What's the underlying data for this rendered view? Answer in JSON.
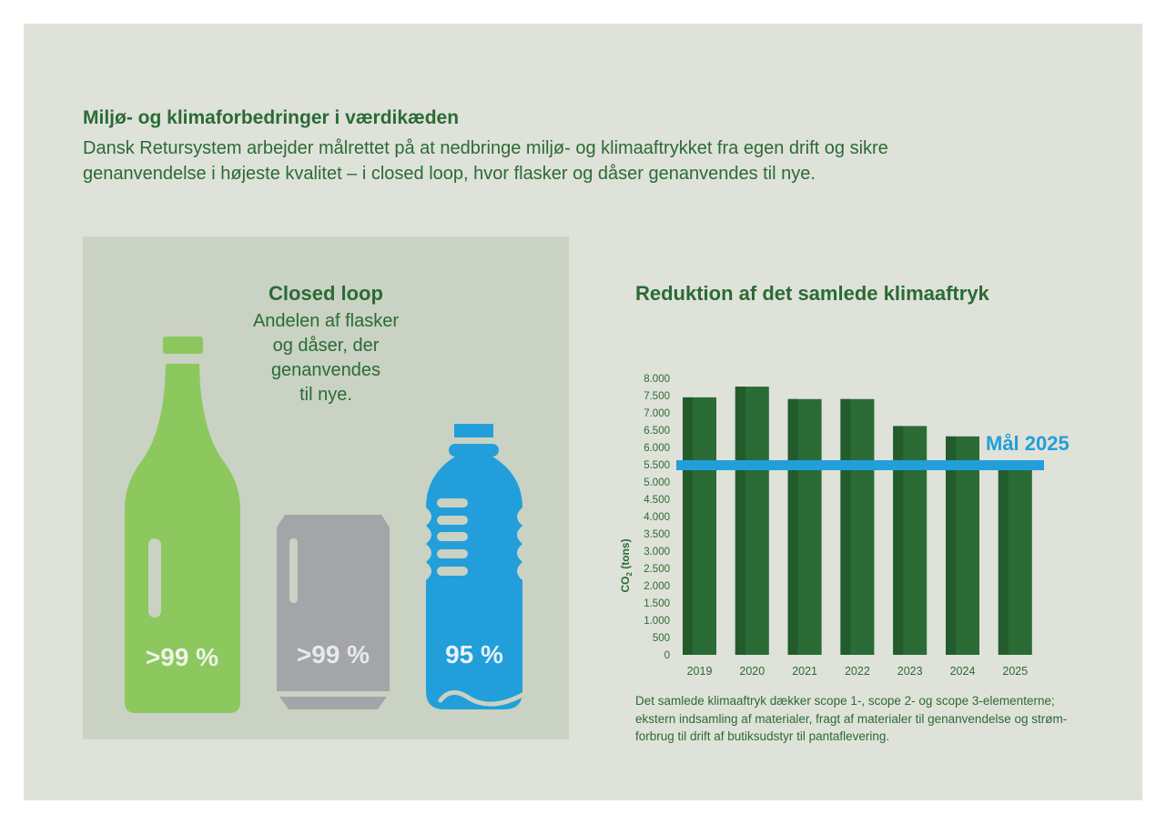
{
  "header": {
    "title": "Miljø- og klimaforbedringer i værdikæden",
    "intro_line1": "Dansk Retursystem arbejder målrettet på at nedbringe miljø- og klimaaftrykket fra egen drift og sikre",
    "intro_line2": "genanvendelse i højeste kvalitet – i closed loop, hvor flasker og dåser genanvendes til nye."
  },
  "closed_loop": {
    "title": "Closed loop",
    "subtitle_lines": [
      "Andelen af flasker",
      "og dåser, der",
      "genanvendes",
      "til nye."
    ],
    "items": [
      {
        "name": "glass-bottle",
        "value": ">99 %",
        "color": "#8cc85e"
      },
      {
        "name": "can",
        "value": ">99 %",
        "color": "#a3a5a9"
      },
      {
        "name": "plastic-bottle",
        "value": "95 %",
        "color": "#229fda"
      }
    ]
  },
  "colors": {
    "bar": "#2a6b36",
    "bar_shade": "#235b2d",
    "goal": "#229fda",
    "text": "#2a6b36"
  },
  "chart_data": {
    "type": "bar",
    "title": "Reduktion af det samlede klimaaftryk",
    "ylabel": "CO2 (tons)",
    "xlabel": "",
    "categories": [
      "2019",
      "2020",
      "2021",
      "2022",
      "2023",
      "2024",
      "2025"
    ],
    "values": [
      7450,
      7760,
      7400,
      7400,
      6620,
      6320,
      5500
    ],
    "ylim": [
      0,
      8000
    ],
    "yticks": [
      0,
      500,
      1000,
      1500,
      2000,
      2500,
      3000,
      3500,
      4000,
      4500,
      5000,
      5500,
      6000,
      6500,
      7000,
      7500,
      8000
    ],
    "ytick_labels": [
      "0",
      "500",
      "1.000",
      "1.500",
      "2.000",
      "2.500",
      "3.000",
      "3.500",
      "4.000",
      "4.500",
      "5.000",
      "5.500",
      "6.000",
      "6.500",
      "7.000",
      "7.500",
      "8.000"
    ],
    "goal": {
      "label": "Mål 2025",
      "value": 5500
    }
  },
  "footnote": {
    "line1": "Det samlede klimaaftryk dækker scope 1-, scope 2- og scope 3-elementerne;",
    "line2": "ekstern indsamling af materialer, fragt af materialer til genanvendelse og strøm-",
    "line3": "forbrug til drift af butiksudstyr til pantaflevering."
  }
}
